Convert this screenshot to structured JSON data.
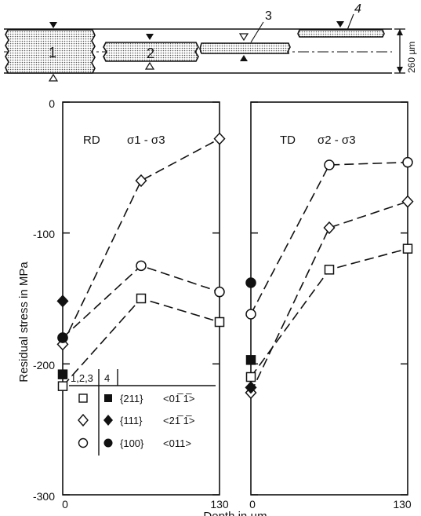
{
  "schematic": {
    "sample_labels": [
      "1",
      "2",
      "3",
      "4"
    ],
    "thickness_label": "260 µm"
  },
  "y_axis": {
    "label": "Residual stress in MPa",
    "ticks": [
      0,
      -100,
      -200,
      -300
    ],
    "tick_labels": [
      "0",
      "-100",
      "-200",
      "-300"
    ]
  },
  "x_axis": {
    "label": "Depth in µm",
    "tick_labels": [
      "0",
      "130"
    ]
  },
  "legend": {
    "header_open": "1,2,3",
    "header_filled": "4",
    "rows": [
      {
        "marker": "square",
        "plane": "{211}",
        "direction": "<01̅ 1̅>"
      },
      {
        "marker": "diamond",
        "plane": "{111}",
        "direction": "<21̅ 1̅>"
      },
      {
        "marker": "circle",
        "plane": "{100}",
        "direction": "<011>"
      }
    ]
  },
  "colors": {
    "ink": "#111111",
    "paper": "#ffffff",
    "hatch": "#555555"
  },
  "chart_data": [
    {
      "type": "line",
      "panel_label": "RD",
      "stress_label": "σ1 - σ3",
      "xlabel": "Depth in µm",
      "ylabel": "Residual stress in MPa",
      "xlim": [
        0,
        130
      ],
      "ylim": [
        -300,
        0
      ],
      "series": [
        {
          "marker": "square",
          "filled": false,
          "x": [
            0,
            65,
            130
          ],
          "y": [
            -217,
            -150,
            -168
          ]
        },
        {
          "marker": "diamond",
          "filled": false,
          "x": [
            0,
            65,
            130
          ],
          "y": [
            -185,
            -60,
            -28
          ]
        },
        {
          "marker": "circle",
          "filled": false,
          "x": [
            0,
            65,
            130
          ],
          "y": [
            -180,
            -125,
            -145
          ]
        },
        {
          "marker": "square",
          "filled": true,
          "x": [
            0
          ],
          "y": [
            -208
          ]
        },
        {
          "marker": "diamond",
          "filled": true,
          "x": [
            0
          ],
          "y": [
            -152
          ]
        },
        {
          "marker": "circle",
          "filled": true,
          "x": [
            0
          ],
          "y": [
            -180
          ]
        }
      ]
    },
    {
      "type": "line",
      "panel_label": "TD",
      "stress_label": "σ2 - σ3",
      "xlabel": "Depth in µm",
      "ylabel": "Residual stress in MPa",
      "xlim": [
        0,
        130
      ],
      "ylim": [
        -300,
        0
      ],
      "series": [
        {
          "marker": "square",
          "filled": false,
          "x": [
            0,
            65,
            130
          ],
          "y": [
            -210,
            -128,
            -112
          ]
        },
        {
          "marker": "diamond",
          "filled": false,
          "x": [
            0,
            65,
            130
          ],
          "y": [
            -222,
            -96,
            -76
          ]
        },
        {
          "marker": "circle",
          "filled": false,
          "x": [
            0,
            65,
            130
          ],
          "y": [
            -162,
            -48,
            -46
          ]
        },
        {
          "marker": "square",
          "filled": true,
          "x": [
            0
          ],
          "y": [
            -197
          ]
        },
        {
          "marker": "diamond",
          "filled": true,
          "x": [
            0
          ],
          "y": [
            -218
          ]
        },
        {
          "marker": "circle",
          "filled": true,
          "x": [
            0
          ],
          "y": [
            -138
          ]
        }
      ]
    }
  ]
}
